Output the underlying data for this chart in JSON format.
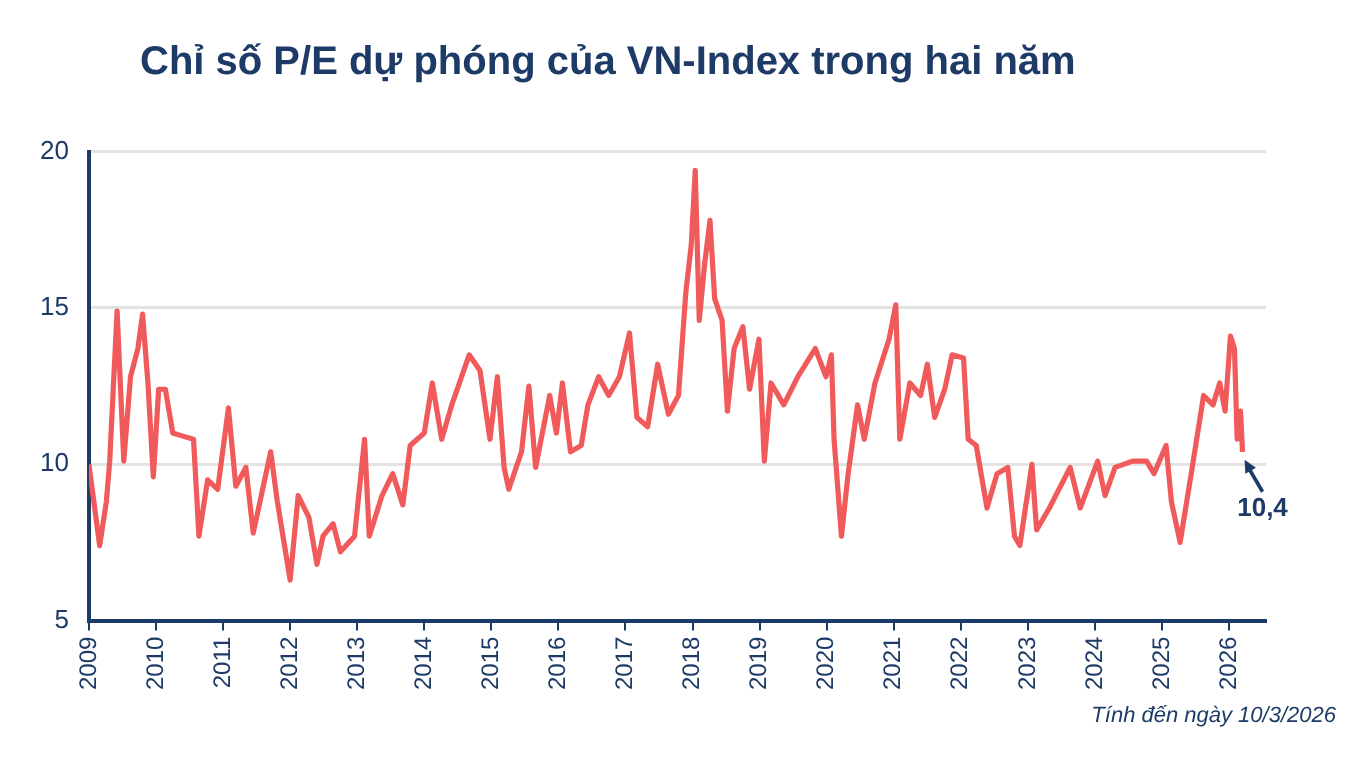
{
  "chart_data": {
    "type": "line",
    "title": "Chỉ số P/E dự phóng của VN-Index trong hai năm",
    "x": [
      2009.0,
      2009.16,
      2009.26,
      2009.31,
      2009.42,
      2009.52,
      2009.62,
      2009.73,
      2009.8,
      2009.88,
      2009.96,
      2010.04,
      2010.14,
      2010.25,
      2010.4,
      2010.56,
      2010.64,
      2010.77,
      2010.92,
      2011.08,
      2011.19,
      2011.34,
      2011.45,
      2011.71,
      2011.81,
      2012.0,
      2012.12,
      2012.28,
      2012.4,
      2012.49,
      2012.64,
      2012.75,
      2012.96,
      2013.11,
      2013.18,
      2013.37,
      2013.53,
      2013.68,
      2013.79,
      2014.0,
      2014.12,
      2014.26,
      2014.41,
      2014.67,
      2014.83,
      2014.98,
      2015.09,
      2015.19,
      2015.26,
      2015.45,
      2015.56,
      2015.66,
      2015.87,
      2015.97,
      2016.06,
      2016.18,
      2016.34,
      2016.44,
      2016.6,
      2016.75,
      2016.91,
      2017.06,
      2017.17,
      2017.33,
      2017.48,
      2017.64,
      2017.79,
      2017.9,
      2017.98,
      2018.04,
      2018.1,
      2018.18,
      2018.26,
      2018.33,
      2018.44,
      2018.52,
      2018.62,
      2018.75,
      2018.85,
      2018.99,
      2019.07,
      2019.17,
      2019.36,
      2019.57,
      2019.83,
      2019.99,
      2020.07,
      2020.11,
      2020.22,
      2020.32,
      2020.46,
      2020.56,
      2020.72,
      2020.93,
      2021.03,
      2021.09,
      2021.24,
      2021.4,
      2021.5,
      2021.61,
      2021.76,
      2021.87,
      2022.04,
      2022.11,
      2022.23,
      2022.39,
      2022.54,
      2022.7,
      2022.8,
      2022.88,
      2023.06,
      2023.13,
      2023.32,
      2023.63,
      2023.78,
      2024.04,
      2024.15,
      2024.3,
      2024.56,
      2024.77,
      2024.88,
      2025.06,
      2025.14,
      2025.27,
      2025.45,
      2025.62,
      2025.76,
      2025.86,
      2025.94,
      2026.02,
      2026.08,
      2026.12,
      2026.17,
      2026.2
    ],
    "series": [
      {
        "color": "#f05a5a",
        "values": [
          10.0,
          7.4,
          8.8,
          10.1,
          14.9,
          10.1,
          12.8,
          13.7,
          14.8,
          12.6,
          9.6,
          12.4,
          12.4,
          11.0,
          10.9,
          10.8,
          7.7,
          9.5,
          9.2,
          11.8,
          9.3,
          9.9,
          7.8,
          10.4,
          8.8,
          6.3,
          9.0,
          8.3,
          6.8,
          7.7,
          8.1,
          7.2,
          7.7,
          10.8,
          7.7,
          9.0,
          9.7,
          8.7,
          10.6,
          11.0,
          12.6,
          10.8,
          11.9,
          13.5,
          13.0,
          10.8,
          12.8,
          9.9,
          9.2,
          10.4,
          12.5,
          9.9,
          12.2,
          11.0,
          12.6,
          10.4,
          10.6,
          11.9,
          12.8,
          12.2,
          12.8,
          14.2,
          11.5,
          11.2,
          13.2,
          11.6,
          12.2,
          15.5,
          17.0,
          19.4,
          14.6,
          16.4,
          17.8,
          15.3,
          14.6,
          11.7,
          13.7,
          14.4,
          12.4,
          14.0,
          10.1,
          12.6,
          11.9,
          12.8,
          13.7,
          12.8,
          13.5,
          10.8,
          7.7,
          9.7,
          11.9,
          10.8,
          12.6,
          14.0,
          15.1,
          10.8,
          12.6,
          12.2,
          13.2,
          11.5,
          12.4,
          13.5,
          13.4,
          10.8,
          10.6,
          8.6,
          9.7,
          9.9,
          7.7,
          7.4,
          10.0,
          7.9,
          8.6,
          9.9,
          8.6,
          10.1,
          9.0,
          9.9,
          10.1,
          10.1,
          9.7,
          10.6,
          8.8,
          7.5,
          9.9,
          12.2,
          11.9,
          12.6,
          11.7,
          14.1,
          13.7,
          10.8,
          11.7,
          10.4
        ]
      }
    ],
    "xlim": [
      2009,
      2026.55
    ],
    "xticks": [
      2009,
      2010,
      2011,
      2012,
      2013,
      2014,
      2015,
      2016,
      2017,
      2018,
      2019,
      2020,
      2021,
      2022,
      2023,
      2024,
      2025,
      2026
    ],
    "ylim": [
      5,
      20
    ],
    "yticks": [
      5,
      10,
      15,
      20
    ],
    "grid": "y",
    "legend": false,
    "annotations": [
      {
        "text": "10,4",
        "x": 2026.2,
        "y": 10.4
      },
      "Tính đến ngày 10/3/2026"
    ]
  }
}
